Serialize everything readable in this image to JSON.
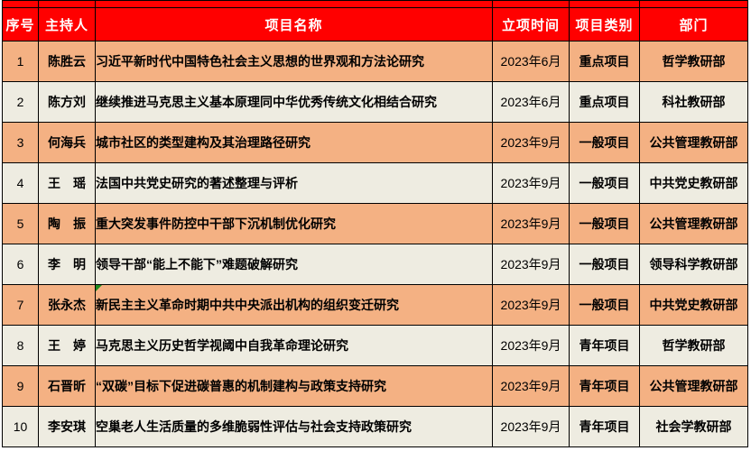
{
  "colors": {
    "header_bg": "#FF0000",
    "header_text": "#FFFFFF",
    "row_alt_bg": "#F4B183",
    "row_base_bg": "#EEECE1",
    "border": "#000000",
    "flag_marker_green": "#1E8B1E"
  },
  "table": {
    "headers": [
      "序号",
      "主持人",
      "项目名称",
      "立项时间",
      "项目类别",
      "部门"
    ],
    "rows": [
      {
        "seq": "1",
        "host": "陈胜云",
        "project": "习近平新时代中国特色社会主义思想的世界观和方法论研究",
        "date": "2023年6月",
        "category": "重点项目",
        "dept": "哲学教研部",
        "flag": false
      },
      {
        "seq": "2",
        "host": "陈方刘",
        "project": "继续推进马克思主义基本原理同中华优秀传统文化相结合研究",
        "date": "2023年6月",
        "category": "重点项目",
        "dept": "科社教研部",
        "flag": false
      },
      {
        "seq": "3",
        "host": "何海兵",
        "project": "城市社区的类型建构及其治理路径研究",
        "date": "2023年9月",
        "category": "一般项目",
        "dept": "公共管理教研部",
        "flag": false
      },
      {
        "seq": "4",
        "host": "王　瑶",
        "project": "法国中共党史研究的著述整理与评析",
        "date": "2023年9月",
        "category": "一般项目",
        "dept": "中共党史教研部",
        "flag": false
      },
      {
        "seq": "5",
        "host": "陶　振",
        "project": "重大突发事件防控中干部下沉机制优化研究",
        "date": "2023年9月",
        "category": "一般项目",
        "dept": "公共管理教研部",
        "flag": false
      },
      {
        "seq": "6",
        "host": "李　明",
        "project": "领导干部“能上不能下”难题破解研究",
        "date": "2023年9月",
        "category": "一般项目",
        "dept": "领导科学教研部",
        "flag": false
      },
      {
        "seq": "7",
        "host": "张永杰",
        "project": "新民主主义革命时期中共中央派出机构的组织变迁研究",
        "date": "2023年9月",
        "category": "一般项目",
        "dept": "中共党史教研部",
        "flag": true
      },
      {
        "seq": "8",
        "host": "王　婷",
        "project": "马克思主义历史哲学视阈中自我革命理论研究",
        "date": "2023年9月",
        "category": "青年项目",
        "dept": "哲学教研部",
        "flag": false
      },
      {
        "seq": "9",
        "host": "石晋昕",
        "project": "“双碳”目标下促进碳普惠的机制建构与政策支持研究",
        "date": "2023年9月",
        "category": "青年项目",
        "dept": "公共管理教研部",
        "flag": false
      },
      {
        "seq": "10",
        "host": "李安琪",
        "project": "空巢老人生活质量的多维脆弱性评估与社会支持政策研究",
        "date": "2023年9月",
        "category": "青年项目",
        "dept": "社会学教研部",
        "flag": false
      }
    ]
  }
}
